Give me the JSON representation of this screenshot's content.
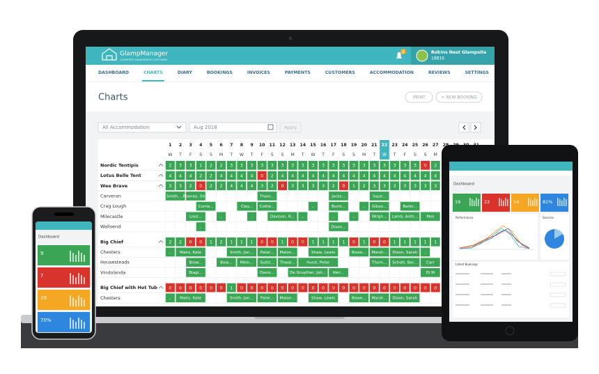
{
  "app": {
    "brand": "GlampManager",
    "tagline": "GLAMPSITE MANAGEMENT SOFTWARE",
    "notifications": 2,
    "user": "Robins Nest Glampsite",
    "user_id": "18816"
  },
  "nav": [
    {
      "label": "DASHBOARD"
    },
    {
      "label": "CHARTS",
      "active": true
    },
    {
      "label": "DIARY"
    },
    {
      "label": "BOOKINGS"
    },
    {
      "label": "INVOICES"
    },
    {
      "label": "PAYMENTS"
    },
    {
      "label": "CUSTOMERS"
    },
    {
      "label": "ACCOMMODATION"
    },
    {
      "label": "REVIEWS"
    },
    {
      "label": "SETTINGS"
    }
  ],
  "page": {
    "title": "Charts",
    "print": "PRINT",
    "new_booking": "+ NEW BOOKING"
  },
  "filters": {
    "accommodation": "All Accommodation",
    "month": "Aug 2018",
    "apply": "Apply"
  },
  "calendar": {
    "days": [
      1,
      2,
      3,
      4,
      5,
      6,
      7,
      8,
      9,
      10,
      11,
      12,
      13,
      14,
      15,
      16,
      17,
      18,
      19,
      20,
      21,
      22,
      23,
      24,
      25,
      26,
      27,
      28,
      29,
      30,
      31
    ],
    "weekdays": [
      "W",
      "T",
      "F",
      "S",
      "S",
      "M",
      "T",
      "W",
      "T",
      "F",
      "S",
      "S",
      "M",
      "T",
      "W",
      "T",
      "F",
      "S",
      "S",
      "M",
      "T",
      "W",
      "T",
      "F",
      "S",
      "S",
      "M",
      "T",
      "W",
      "T",
      "F"
    ],
    "today": 22,
    "groups": [
      {
        "name": "Nordic Tentipis",
        "availability": [
          2,
          3,
          3,
          1,
          2,
          2,
          3,
          3,
          3,
          3,
          3,
          3,
          3,
          3,
          3,
          3,
          3,
          3,
          3,
          3,
          3,
          3,
          3,
          3,
          3,
          0,
          2
        ],
        "units": []
      },
      {
        "name": "Lotus Belle Tent",
        "availability": [
          4,
          4,
          4,
          2,
          2,
          4,
          4,
          4,
          4,
          0,
          2,
          4,
          4,
          4,
          4,
          4,
          4,
          4,
          4,
          4,
          4,
          4,
          4,
          4,
          4,
          4,
          4
        ],
        "units": []
      },
      {
        "name": "Wee Brave",
        "availability": [
          3,
          3,
          2,
          0,
          2,
          2,
          4,
          4,
          4,
          3,
          2,
          0,
          3,
          3,
          3,
          3,
          2,
          0,
          1,
          2,
          3,
          3,
          3,
          3,
          3,
          3,
          3
        ],
        "units": [
          {
            "name": "Carveran",
            "bookings": [
              {
                "day": 1,
                "nights": 2,
                "label": "Smith, ..."
              },
              {
                "day": 3,
                "nights": 2,
                "label": "Rooney, Sh..."
              },
              {
                "day": 10,
                "nights": 2,
                "label": "Thom..."
              },
              {
                "day": 17,
                "nights": 2,
                "label": "Jacks..."
              },
              {
                "day": 21,
                "nights": 2,
                "label": "Squir..."
              }
            ]
          },
          {
            "name": "Crag Lough",
            "bookings": [
              {
                "day": 4,
                "nights": 2,
                "label": "Currie..."
              },
              {
                "day": 8,
                "nights": 2,
                "label": "Clay..."
              },
              {
                "day": 10,
                "nights": 2,
                "label": "Cottie..."
              },
              {
                "day": 15,
                "nights": 1,
                "label": ".."
              },
              {
                "day": 17,
                "nights": 2,
                "label": "Burni..."
              },
              {
                "day": 20,
                "nights": 1,
                "label": ".."
              },
              {
                "day": 21,
                "nights": 2,
                "label": "Gibso..."
              },
              {
                "day": 24,
                "nights": 2,
                "label": "Barbr..."
              }
            ]
          },
          {
            "name": "Milecastle",
            "bookings": [
              {
                "day": 3,
                "nights": 2,
                "label": "Liosi..."
              },
              {
                "day": 6,
                "nights": 1,
                "label": ".."
              },
              {
                "day": 9,
                "nights": 1,
                "label": ".."
              },
              {
                "day": 11,
                "nights": 3,
                "label": "Davison, R..."
              },
              {
                "day": 14,
                "nights": 1,
                "label": ".."
              },
              {
                "day": 17,
                "nights": 1,
                "label": ".."
              },
              {
                "day": 19,
                "nights": 1,
                "label": ".."
              },
              {
                "day": 21,
                "nights": 2,
                "label": "Wrigh..."
              },
              {
                "day": 23,
                "nights": 3,
                "label": "Lamb, Anth..."
              },
              {
                "day": 26,
                "nights": 2,
                "label": "Mos"
              }
            ]
          },
          {
            "name": "Wallsend",
            "bookings": [
              {
                "day": 4,
                "nights": 1,
                "label": ".."
              },
              {
                "day": 17,
                "nights": 2,
                "label": "Dixon..."
              }
            ]
          }
        ]
      },
      {
        "name": "Big Chief",
        "availability": [
          2,
          2,
          0,
          0,
          1,
          2,
          1,
          1,
          1,
          0,
          0,
          1,
          0,
          0,
          1,
          1,
          1,
          1,
          0,
          1,
          0,
          0,
          1,
          1,
          1,
          1,
          1
        ],
        "units": [
          {
            "name": "Chesters",
            "bookings": [
              {
                "day": 1,
                "nights": 1,
                "label": ".."
              },
              {
                "day": 2,
                "nights": 3,
                "label": "Mairs, Kate"
              },
              {
                "day": 7,
                "nights": 3,
                "label": "Smith, Jon..."
              },
              {
                "day": 10,
                "nights": 2,
                "label": "Pater..."
              },
              {
                "day": 12,
                "nights": 2,
                "label": "Malon..."
              },
              {
                "day": 15,
                "nights": 3,
                "label": "Shaw, Lewis"
              },
              {
                "day": 19,
                "nights": 2,
                "label": "Bowe..."
              },
              {
                "day": 21,
                "nights": 2,
                "label": "Marsh..."
              },
              {
                "day": 23,
                "nights": 3,
                "label": "Dixon, Sarah"
              },
              {
                "day": 26,
                "nights": 1,
                "label": ".."
              }
            ]
          },
          {
            "name": "Housesteads",
            "bookings": [
              {
                "day": 3,
                "nights": 2,
                "label": "Brow..."
              },
              {
                "day": 6,
                "nights": 2,
                "label": "Bola..."
              },
              {
                "day": 8,
                "nights": 2,
                "label": "Mein..."
              },
              {
                "day": 10,
                "nights": 2,
                "label": "Suttil..."
              },
              {
                "day": 12,
                "nights": 2,
                "label": "Thwai..."
              },
              {
                "day": 14,
                "nights": 4,
                "label": "Hurst, Peter"
              },
              {
                "day": 21,
                "nights": 2,
                "label": "Thom..."
              },
              {
                "day": 23,
                "nights": 3,
                "label": "Schott, Ber..."
              },
              {
                "day": 26,
                "nights": 2,
                "label": "Carr"
              }
            ]
          },
          {
            "name": "Vindolanda",
            "bookings": [
              {
                "day": 3,
                "nights": 2,
                "label": "Biagi..."
              },
              {
                "day": 10,
                "nights": 2,
                "label": "Davis..."
              },
              {
                "day": 13,
                "nights": 4,
                "label": "De Gruyther, Joh..."
              },
              {
                "day": 17,
                "nights": 2,
                "label": "Kerr..."
              },
              {
                "day": 26,
                "nights": 2,
                "label": "Di M"
              }
            ]
          }
        ]
      },
      {
        "name": "Big Chief with Hot Tub",
        "availability": [
          0,
          0,
          0,
          0,
          0,
          0,
          1,
          0,
          0,
          0,
          0,
          0,
          0,
          0,
          0,
          0,
          0,
          0,
          0,
          0,
          0,
          0,
          0,
          0,
          0,
          0,
          0
        ],
        "units": [
          {
            "name": "Chesters",
            "bookings": [
              {
                "day": 1,
                "nights": 1,
                "label": ".."
              },
              {
                "day": 2,
                "nights": 3,
                "label": "Mairs, Kate"
              },
              {
                "day": 7,
                "nights": 3,
                "label": "Smith, Jon..."
              },
              {
                "day": 10,
                "nights": 2,
                "label": "Pater..."
              },
              {
                "day": 12,
                "nights": 2,
                "label": "Malon..."
              },
              {
                "day": 15,
                "nights": 3,
                "label": "Shaw, Lewis"
              },
              {
                "day": 19,
                "nights": 2,
                "label": "Bowe..."
              },
              {
                "day": 21,
                "nights": 2,
                "label": "Marsh..."
              },
              {
                "day": 23,
                "nights": 3,
                "label": "Dixon, Sarah"
              }
            ]
          }
        ]
      }
    ]
  },
  "tablet": {
    "title": "Dashboard",
    "stats": [
      {
        "value": "19",
        "color": "#3aa655"
      },
      {
        "value": "22",
        "color": "#d9342b"
      },
      {
        "value": "14",
        "color": "#f5a623"
      },
      {
        "value": "81%",
        "color": "#2e86de"
      }
    ],
    "performance": "Performance",
    "sources": "Sources",
    "latest": "Latest Bookings"
  },
  "phone": {
    "title": "Dashboard",
    "stats": [
      {
        "value": "9",
        "color": "#3aa655"
      },
      {
        "value": "7",
        "color": "#d9342b"
      },
      {
        "value": "28",
        "color": "#f5a623"
      },
      {
        "value": "70%",
        "color": "#2e86de"
      }
    ]
  }
}
